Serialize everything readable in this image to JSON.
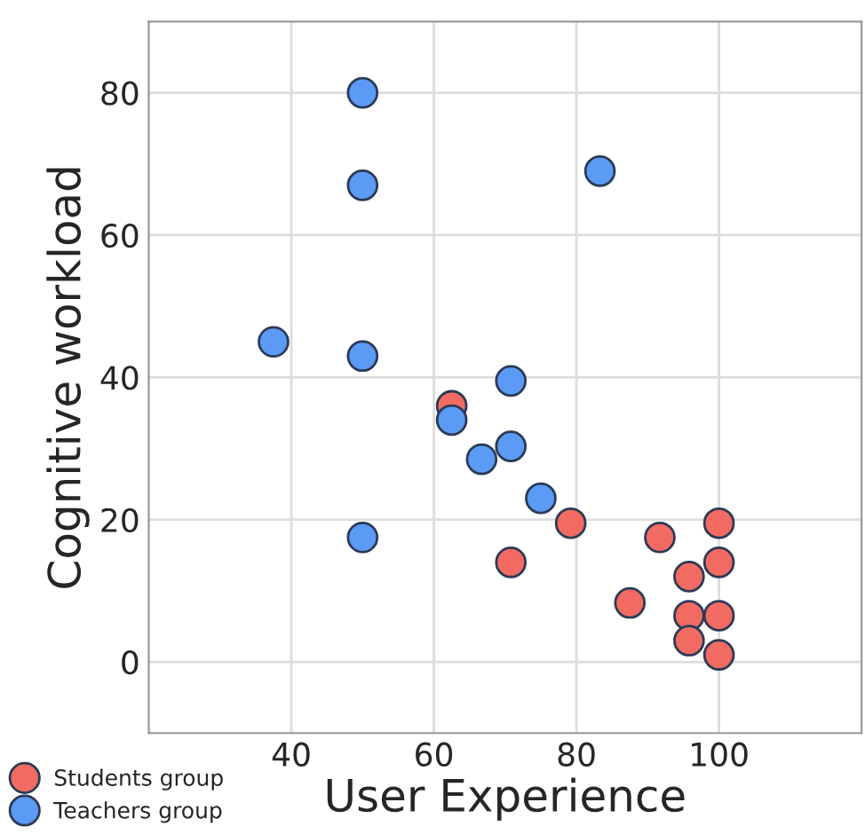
{
  "chart_data": {
    "type": "scatter",
    "xlabel": "User Experience",
    "ylabel": "Cognitive workload",
    "xlim": [
      20,
      120
    ],
    "ylim": [
      -10,
      90
    ],
    "xticks": [
      40,
      60,
      80,
      100
    ],
    "yticks": [
      0,
      20,
      40,
      60,
      80
    ],
    "grid": true,
    "legend": "bottom left",
    "marker": "circle",
    "series": [
      {
        "name": "Students group",
        "color": "#f26b63",
        "x": [
          62.5,
          79.2,
          70.8,
          91.7,
          100,
          100,
          95.8,
          87.5,
          95.8,
          100,
          95.8,
          100
        ],
        "values": [
          36,
          19.5,
          14,
          17.5,
          19.5,
          14,
          12,
          8.3,
          6.5,
          6.5,
          3,
          1
        ]
      },
      {
        "name": "Teachers group",
        "color": "#5b9af5",
        "x": [
          50,
          50,
          83.3,
          37.5,
          50,
          70.8,
          62.5,
          66.7,
          70.8,
          75,
          50
        ],
        "values": [
          80,
          67,
          69,
          45,
          43,
          39.5,
          34,
          28.5,
          30.3,
          23,
          17.5
        ]
      }
    ]
  }
}
